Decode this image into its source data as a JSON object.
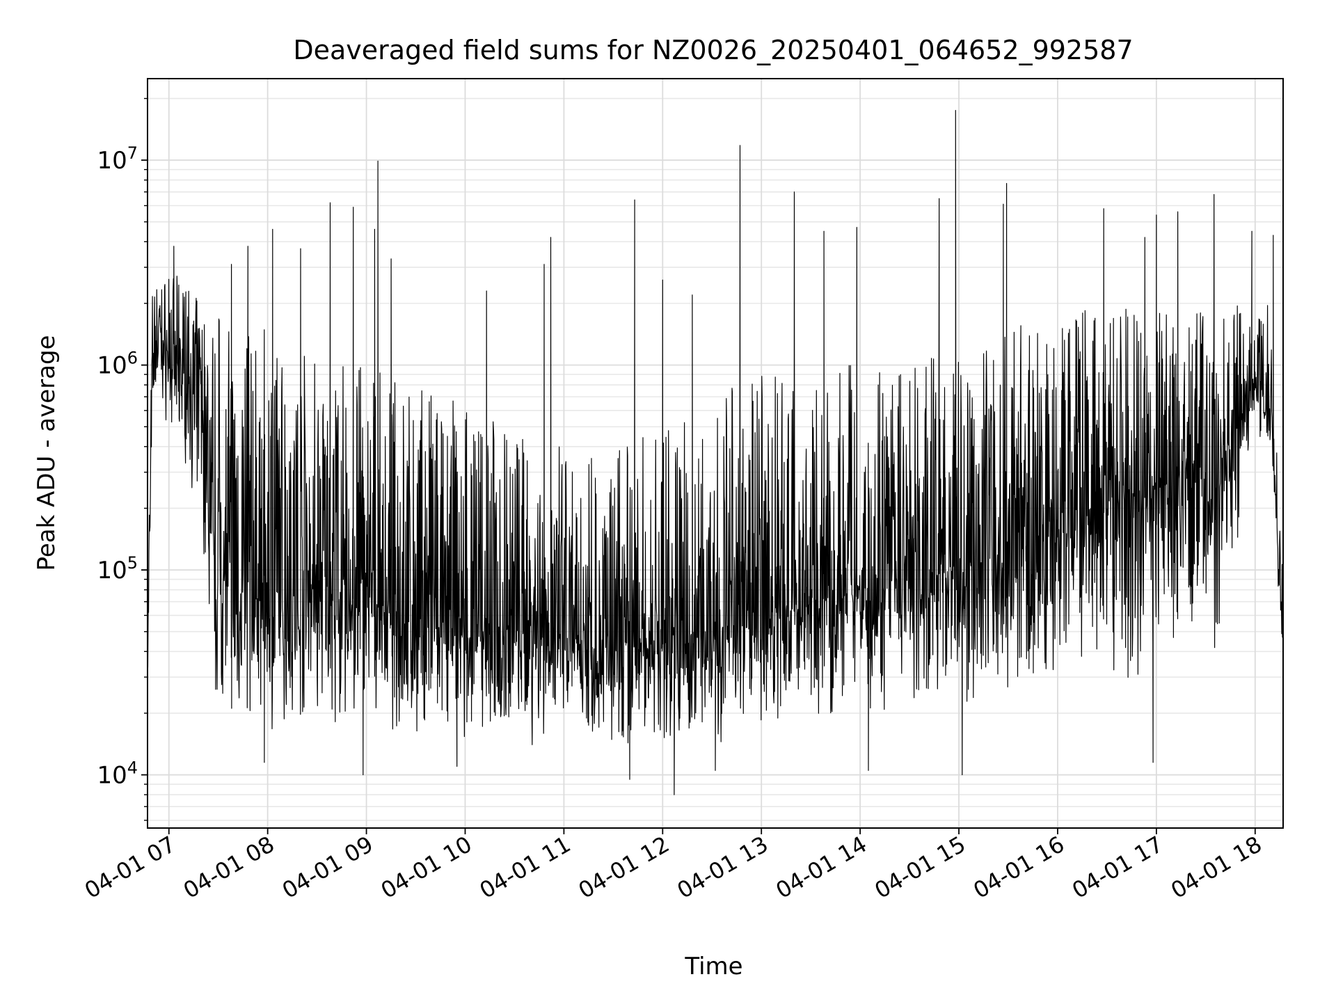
{
  "chart_data": {
    "type": "line",
    "title": "Deaveraged field sums for NZ0026_20250401_064652_992587",
    "xlabel": "Time",
    "ylabel": "Peak ADU - average",
    "xscale": "time",
    "yscale": "log",
    "xlim": [
      "2025-04-01 06:47",
      "2025-04-01 18:17"
    ],
    "ylim": [
      5500,
      25000000
    ],
    "x_ticks": [
      "04-01 07",
      "04-01 08",
      "04-01 09",
      "04-01 10",
      "04-01 11",
      "04-01 12",
      "04-01 13",
      "04-01 14",
      "04-01 15",
      "04-01 16",
      "04-01 17",
      "04-01 18"
    ],
    "y_ticks": [
      {
        "base": "10",
        "exp": "4"
      },
      {
        "base": "10",
        "exp": "5"
      },
      {
        "base": "10",
        "exp": "6"
      },
      {
        "base": "10",
        "exp": "7"
      }
    ],
    "grid": true,
    "line_color": "#000000",
    "series": [
      {
        "x": [
          "2025-04-01 06:47",
          "2025-04-01 06:48",
          "2025-04-01 06:50",
          "2025-04-01 06:53",
          "2025-04-01 07:00",
          "2025-04-01 07:10",
          "2025-04-01 07:20",
          "2025-04-01 07:25",
          "2025-04-01 07:30",
          "2025-04-01 07:40",
          "2025-04-01 08:00",
          "2025-04-01 08:30",
          "2025-04-01 09:00",
          "2025-04-01 09:30",
          "2025-04-01 10:00",
          "2025-04-01 10:30",
          "2025-04-01 11:00",
          "2025-04-01 11:30",
          "2025-04-01 12:00",
          "2025-04-01 12:30",
          "2025-04-01 13:00",
          "2025-04-01 13:30",
          "2025-04-01 14:00",
          "2025-04-01 14:30",
          "2025-04-01 15:00",
          "2025-04-01 15:30",
          "2025-04-01 16:00",
          "2025-04-01 16:30",
          "2025-04-01 17:00",
          "2025-04-01 17:30",
          "2025-04-01 17:45",
          "2025-04-01 18:00",
          "2025-04-01 18:10",
          "2025-04-01 18:17"
        ],
        "y": [
          30000,
          100000,
          900000,
          1500000,
          1000000,
          900000,
          700000,
          150000,
          100000,
          90000,
          80000,
          80000,
          70000,
          60000,
          55000,
          50000,
          45000,
          40000,
          45000,
          50000,
          60000,
          70000,
          80000,
          90000,
          100000,
          120000,
          150000,
          200000,
          250000,
          300000,
          400000,
          900000,
          600000,
          40000
        ],
        "y_low": [
          25000,
          60000,
          600000,
          600000,
          500000,
          300000,
          150000,
          25000,
          17000,
          16000,
          16000,
          15000,
          15000,
          14000,
          14000,
          13000,
          13000,
          13000,
          13000,
          14000,
          15000,
          16000,
          17000,
          18000,
          19000,
          20000,
          22000,
          24000,
          26000,
          30000,
          60000,
          500000,
          300000,
          30000
        ],
        "y_high": [
          40000,
          300000,
          2500000,
          2500000,
          3000000,
          2500000,
          2000000,
          2000000,
          2000000,
          1500000,
          1500000,
          1200000,
          1000000,
          800000,
          700000,
          500000,
          400000,
          400000,
          500000,
          700000,
          900000,
          1000000,
          1000000,
          1000000,
          1200000,
          1500000,
          2000000,
          2000000,
          2000000,
          2000000,
          2000000,
          2000000,
          2000000,
          100000
        ]
      }
    ],
    "spikes": [
      {
        "x": "2025-04-01 07:03",
        "y": 3800000
      },
      {
        "x": "2025-04-01 07:38",
        "y": 3100000
      },
      {
        "x": "2025-04-01 07:48",
        "y": 3800000
      },
      {
        "x": "2025-04-01 08:03",
        "y": 4600000
      },
      {
        "x": "2025-04-01 08:20",
        "y": 3700000
      },
      {
        "x": "2025-04-01 08:38",
        "y": 6200000
      },
      {
        "x": "2025-04-01 08:52",
        "y": 5900000
      },
      {
        "x": "2025-04-01 09:05",
        "y": 4600000
      },
      {
        "x": "2025-04-01 09:07",
        "y": 9900000
      },
      {
        "x": "2025-04-01 09:15",
        "y": 3300000
      },
      {
        "x": "2025-04-01 10:13",
        "y": 2300000
      },
      {
        "x": "2025-04-01 10:48",
        "y": 3100000
      },
      {
        "x": "2025-04-01 10:52",
        "y": 4200000
      },
      {
        "x": "2025-04-01 11:43",
        "y": 6400000
      },
      {
        "x": "2025-04-01 12:00",
        "y": 2600000
      },
      {
        "x": "2025-04-01 12:18",
        "y": 2200000
      },
      {
        "x": "2025-04-01 12:47",
        "y": 11800000
      },
      {
        "x": "2025-04-01 13:20",
        "y": 7000000
      },
      {
        "x": "2025-04-01 13:38",
        "y": 4500000
      },
      {
        "x": "2025-04-01 13:58",
        "y": 4700000
      },
      {
        "x": "2025-04-01 14:48",
        "y": 6500000
      },
      {
        "x": "2025-04-01 14:58",
        "y": 17500000
      },
      {
        "x": "2025-04-01 15:27",
        "y": 6100000
      },
      {
        "x": "2025-04-01 15:29",
        "y": 7700000
      },
      {
        "x": "2025-04-01 16:28",
        "y": 5800000
      },
      {
        "x": "2025-04-01 16:53",
        "y": 4200000
      },
      {
        "x": "2025-04-01 17:00",
        "y": 5400000
      },
      {
        "x": "2025-04-01 17:13",
        "y": 5600000
      },
      {
        "x": "2025-04-01 17:35",
        "y": 6800000
      },
      {
        "x": "2025-04-01 17:58",
        "y": 4500000
      },
      {
        "x": "2025-04-01 18:11",
        "y": 4300000
      }
    ],
    "dips": [
      {
        "x": "2025-04-01 07:58",
        "y": 11500
      },
      {
        "x": "2025-04-01 08:58",
        "y": 10000
      },
      {
        "x": "2025-04-01 09:55",
        "y": 11000
      },
      {
        "x": "2025-04-01 11:40",
        "y": 9500
      },
      {
        "x": "2025-04-01 12:07",
        "y": 8000
      },
      {
        "x": "2025-04-01 12:32",
        "y": 10500
      },
      {
        "x": "2025-04-01 14:05",
        "y": 10500
      },
      {
        "x": "2025-04-01 15:02",
        "y": 10000
      },
      {
        "x": "2025-04-01 16:58",
        "y": 11500
      }
    ]
  }
}
